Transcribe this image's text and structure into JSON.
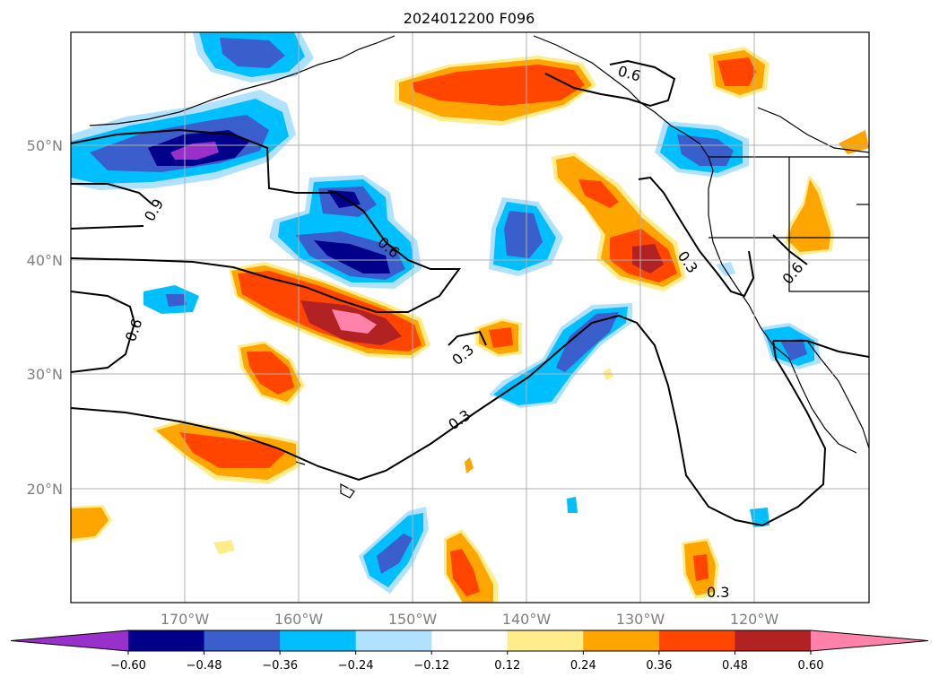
{
  "title": "2024012200 F096",
  "map": {
    "lat_labels": [
      "50°N",
      "40°N",
      "30°N",
      "20°N"
    ],
    "lon_labels": [
      "170°W",
      "160°W",
      "150°W",
      "140°W",
      "130°W",
      "120°W"
    ],
    "contour_labels": [
      "0.9",
      "0.6",
      "0.6",
      "0.6",
      "0.6",
      "0.3",
      "0.3",
      "0.3",
      "0.3"
    ]
  },
  "colorbar": {
    "ticks": [
      "−0.60",
      "−0.48",
      "−0.36",
      "−0.24",
      "−0.12",
      "0.12",
      "0.24",
      "0.36",
      "0.48",
      "0.60"
    ],
    "colors": [
      "#9a30cc",
      "#00008b",
      "#3a5fcd",
      "#00bfff",
      "#b0e2ff",
      "#ffffff",
      "#ffec8b",
      "#ffa500",
      "#ff4500",
      "#b22222",
      "#ff82ab"
    ]
  },
  "colors": {
    "c_m060": "#9a30cc",
    "c_m048": "#00008b",
    "c_m036": "#3a5fcd",
    "c_m024": "#00bfff",
    "c_m012": "#b0e2ff",
    "c_p012": "#ffec8b",
    "c_p024": "#ffa500",
    "c_p036": "#ff4500",
    "c_p048": "#b22222",
    "c_p060": "#ff82ab",
    "grid": "#b0b0b0"
  }
}
